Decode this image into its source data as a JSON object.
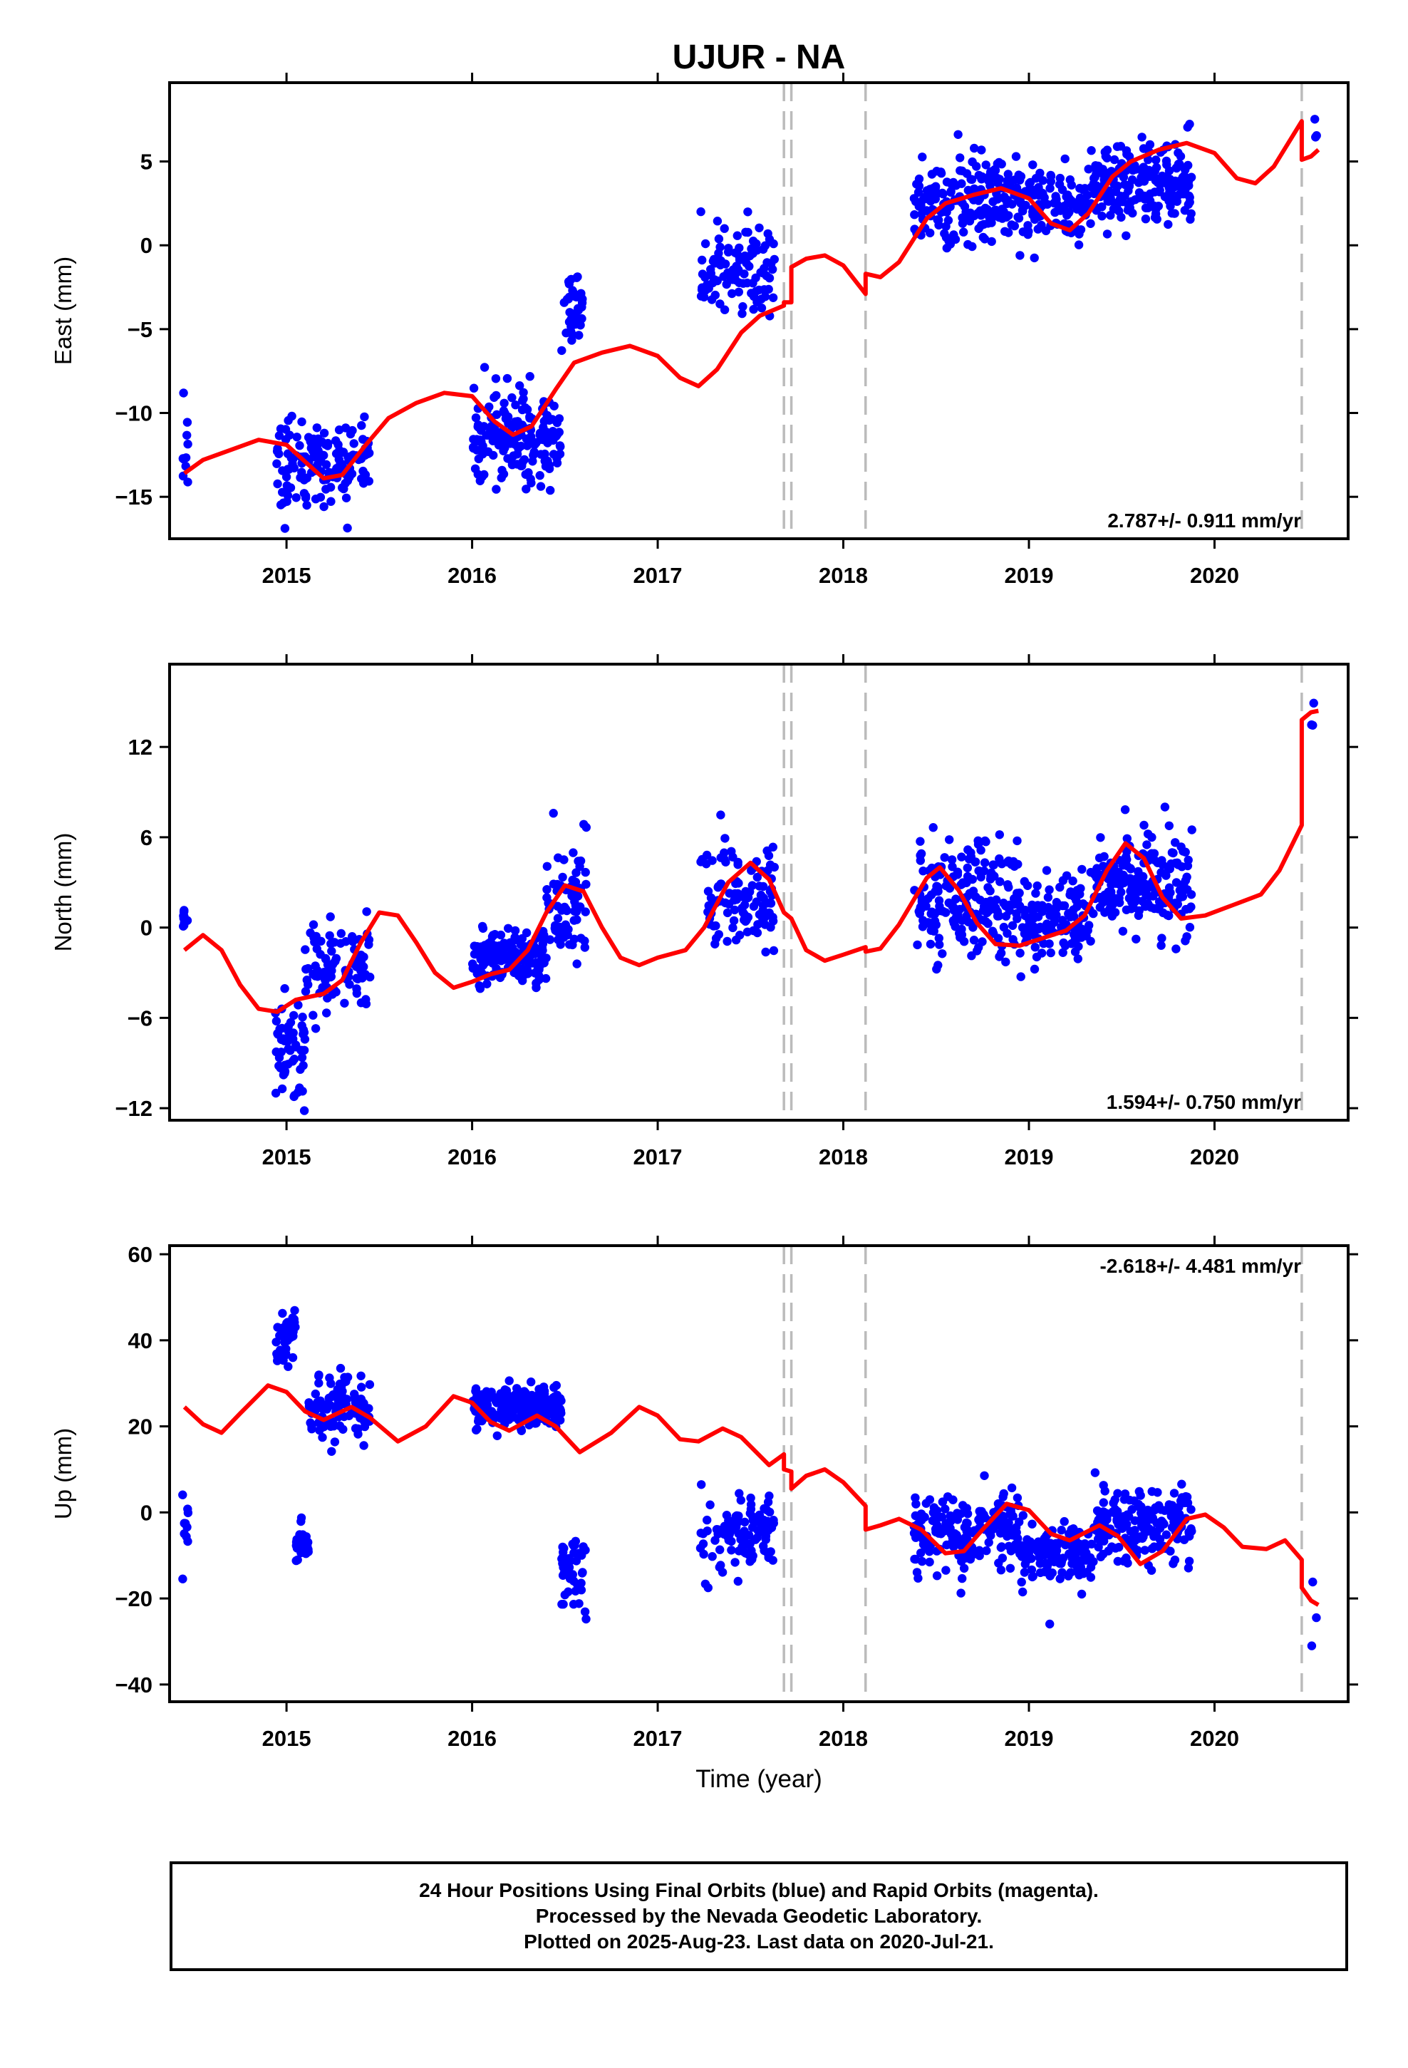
{
  "title": "UJUR - NA",
  "colors": {
    "final_orbits": "#0000ff",
    "model": "#ff0000",
    "break_lines": "#bbbbbb",
    "axes": "#000000"
  },
  "xlabel": "Time (year)",
  "footer": {
    "line1": "24 Hour Positions Using Final Orbits (blue) and Rapid Orbits (magenta).",
    "line2": "Processed by the Nevada Geodetic Laboratory.",
    "line3": "Plotted on 2025-Aug-23. Last data on 2020-Jul-21."
  },
  "chart_data": {
    "type": "scatter",
    "xlim": [
      2014.37,
      2020.72
    ],
    "x_ticks": [
      2015,
      2016,
      2017,
      2018,
      2019,
      2020
    ],
    "x_tick_labels": [
      "2015",
      "2016",
      "2017",
      "2018",
      "2019",
      "2020"
    ],
    "break_lines_x": [
      2017.68,
      2017.72,
      2018.12,
      2020.47
    ],
    "grid": false,
    "panels": [
      {
        "name": "east",
        "ylabel": "East (mm)",
        "ylim": [
          -17.5,
          9.7
        ],
        "y_ticks": [
          -15,
          -10,
          -5,
          0,
          5
        ],
        "y_tick_labels": [
          "−15",
          "−10",
          "−5",
          "0",
          "5"
        ],
        "rate_label": "2.787+/- 0.911 mm/yr",
        "rate_position": "bottom-right",
        "model": [
          [
            2014.45,
            -13.6
          ],
          [
            2014.55,
            -12.8
          ],
          [
            2014.7,
            -12.2
          ],
          [
            2014.85,
            -11.6
          ],
          [
            2015.0,
            -11.9
          ],
          [
            2015.1,
            -12.9
          ],
          [
            2015.2,
            -13.9
          ],
          [
            2015.3,
            -13.7
          ],
          [
            2015.42,
            -12.0
          ],
          [
            2015.55,
            -10.3
          ],
          [
            2015.7,
            -9.4
          ],
          [
            2015.85,
            -8.8
          ],
          [
            2016.0,
            -9.0
          ],
          [
            2016.12,
            -10.5
          ],
          [
            2016.22,
            -11.3
          ],
          [
            2016.32,
            -10.8
          ],
          [
            2016.45,
            -8.6
          ],
          [
            2016.55,
            -7.0
          ],
          [
            2016.7,
            -6.4
          ],
          [
            2016.85,
            -6.0
          ],
          [
            2017.0,
            -6.6
          ],
          [
            2017.12,
            -7.9
          ],
          [
            2017.22,
            -8.4
          ],
          [
            2017.32,
            -7.4
          ],
          [
            2017.45,
            -5.2
          ],
          [
            2017.55,
            -4.2
          ],
          [
            2017.68,
            -3.6
          ],
          [
            2017.68,
            -3.4
          ],
          [
            2017.72,
            -3.4
          ],
          [
            2017.72,
            -1.3
          ],
          [
            2017.8,
            -0.8
          ],
          [
            2017.9,
            -0.6
          ],
          [
            2018.0,
            -1.2
          ],
          [
            2018.12,
            -2.9
          ],
          [
            2018.12,
            -1.7
          ],
          [
            2018.2,
            -1.9
          ],
          [
            2018.3,
            -1.0
          ],
          [
            2018.45,
            1.6
          ],
          [
            2018.55,
            2.5
          ],
          [
            2018.7,
            3.0
          ],
          [
            2018.85,
            3.4
          ],
          [
            2019.0,
            2.8
          ],
          [
            2019.12,
            1.3
          ],
          [
            2019.22,
            0.9
          ],
          [
            2019.32,
            1.9
          ],
          [
            2019.45,
            4.1
          ],
          [
            2019.55,
            5.0
          ],
          [
            2019.7,
            5.7
          ],
          [
            2019.85,
            6.1
          ],
          [
            2020.0,
            5.5
          ],
          [
            2020.12,
            4.0
          ],
          [
            2020.22,
            3.7
          ],
          [
            2020.32,
            4.7
          ],
          [
            2020.47,
            7.4
          ],
          [
            2020.47,
            5.1
          ],
          [
            2020.52,
            5.3
          ],
          [
            2020.56,
            5.7
          ]
        ],
        "clusters": [
          {
            "x": [
              2014.44,
              2014.47
            ],
            "y": [
              -12.0,
              2.0
            ],
            "n": 10
          },
          {
            "x": [
              2014.94,
              2015.45
            ],
            "y": [
              -13.0,
              2.5
            ],
            "n": 150
          },
          {
            "x": [
              2016.0,
              2016.48
            ],
            "y": [
              -11.5,
              2.5
            ],
            "n": 180
          },
          {
            "x": [
              2016.48,
              2016.6
            ],
            "y": [
              -4.0,
              2.2
            ],
            "n": 40
          },
          {
            "x": [
              2017.23,
              2017.63
            ],
            "y": [
              -1.5,
              2.3
            ],
            "n": 110
          },
          {
            "x": [
              2018.38,
              2018.95
            ],
            "y": [
              2.6,
              2.4
            ],
            "n": 200
          },
          {
            "x": [
              2018.95,
              2019.35
            ],
            "y": [
              2.6,
              2.0
            ],
            "n": 120
          },
          {
            "x": [
              2019.35,
              2019.88
            ],
            "y": [
              3.8,
              2.3
            ],
            "n": 200
          },
          {
            "x": [
              2020.52,
              2020.56
            ],
            "y": [
              6.0,
              1.2
            ],
            "n": 3
          }
        ]
      },
      {
        "name": "north",
        "ylabel": "North (mm)",
        "ylim": [
          -12.8,
          17.5
        ],
        "y_ticks": [
          -12,
          -6,
          0,
          6,
          12
        ],
        "y_tick_labels": [
          "−12",
          "−6",
          "0",
          "6",
          "12"
        ],
        "rate_label": "1.594+/- 0.750 mm/yr",
        "rate_position": "bottom-right",
        "model": [
          [
            2014.45,
            -1.5
          ],
          [
            2014.55,
            -0.5
          ],
          [
            2014.65,
            -1.5
          ],
          [
            2014.75,
            -3.8
          ],
          [
            2014.85,
            -5.4
          ],
          [
            2014.95,
            -5.6
          ],
          [
            2015.05,
            -4.8
          ],
          [
            2015.2,
            -4.4
          ],
          [
            2015.3,
            -3.5
          ],
          [
            2015.4,
            -1.0
          ],
          [
            2015.5,
            1.0
          ],
          [
            2015.6,
            0.8
          ],
          [
            2015.7,
            -1.0
          ],
          [
            2015.8,
            -3.0
          ],
          [
            2015.9,
            -4.0
          ],
          [
            2016.0,
            -3.6
          ],
          [
            2016.1,
            -3.1
          ],
          [
            2016.2,
            -2.8
          ],
          [
            2016.3,
            -1.5
          ],
          [
            2016.4,
            1.0
          ],
          [
            2016.5,
            2.8
          ],
          [
            2016.6,
            2.4
          ],
          [
            2016.7,
            0.0
          ],
          [
            2016.8,
            -2.0
          ],
          [
            2016.9,
            -2.5
          ],
          [
            2017.0,
            -2.0
          ],
          [
            2017.15,
            -1.5
          ],
          [
            2017.25,
            0.0
          ],
          [
            2017.38,
            3.0
          ],
          [
            2017.5,
            4.3
          ],
          [
            2017.6,
            3.2
          ],
          [
            2017.68,
            1.0
          ],
          [
            2017.72,
            0.6
          ],
          [
            2017.8,
            -1.5
          ],
          [
            2017.9,
            -2.2
          ],
          [
            2018.0,
            -1.8
          ],
          [
            2018.12,
            -1.3
          ],
          [
            2018.12,
            -1.6
          ],
          [
            2018.2,
            -1.4
          ],
          [
            2018.3,
            0.2
          ],
          [
            2018.45,
            3.3
          ],
          [
            2018.52,
            4.0
          ],
          [
            2018.62,
            2.5
          ],
          [
            2018.72,
            0.3
          ],
          [
            2018.82,
            -1.1
          ],
          [
            2018.95,
            -1.2
          ],
          [
            2019.1,
            -0.6
          ],
          [
            2019.2,
            -0.2
          ],
          [
            2019.3,
            0.8
          ],
          [
            2019.42,
            3.8
          ],
          [
            2019.52,
            5.6
          ],
          [
            2019.62,
            4.6
          ],
          [
            2019.72,
            2.0
          ],
          [
            2019.82,
            0.6
          ],
          [
            2019.95,
            0.8
          ],
          [
            2020.1,
            1.5
          ],
          [
            2020.25,
            2.2
          ],
          [
            2020.35,
            3.8
          ],
          [
            2020.47,
            6.8
          ],
          [
            2020.47,
            13.8
          ],
          [
            2020.52,
            14.3
          ],
          [
            2020.56,
            14.4
          ]
        ],
        "clusters": [
          {
            "x": [
              2014.44,
              2014.47
            ],
            "y": [
              0.5,
              1.8
            ],
            "n": 10
          },
          {
            "x": [
              2014.94,
              2015.1
            ],
            "y": [
              -8.0,
              3.0
            ],
            "n": 60
          },
          {
            "x": [
              2015.1,
              2015.45
            ],
            "y": [
              -2.5,
              2.5
            ],
            "n": 90
          },
          {
            "x": [
              2016.0,
              2016.4
            ],
            "y": [
              -2.0,
              1.8
            ],
            "n": 150
          },
          {
            "x": [
              2016.4,
              2016.62
            ],
            "y": [
              1.5,
              3.5
            ],
            "n": 70
          },
          {
            "x": [
              2017.23,
              2017.63
            ],
            "y": [
              2.0,
              3.0
            ],
            "n": 110
          },
          {
            "x": [
              2018.38,
              2018.95
            ],
            "y": [
              2.0,
              3.5
            ],
            "n": 200
          },
          {
            "x": [
              2018.95,
              2019.35
            ],
            "y": [
              0.5,
              2.5
            ],
            "n": 120
          },
          {
            "x": [
              2019.35,
              2019.88
            ],
            "y": [
              3.0,
              3.0
            ],
            "n": 200
          },
          {
            "x": [
              2020.52,
              2020.56
            ],
            "y": [
              14.5,
              1.8
            ],
            "n": 3
          }
        ]
      },
      {
        "name": "up",
        "ylabel": "Up (mm)",
        "ylim": [
          -44,
          62
        ],
        "y_ticks": [
          -40,
          -20,
          0,
          20,
          40,
          60
        ],
        "y_tick_labels": [
          "−40",
          "−20",
          "0",
          "20",
          "40",
          "60"
        ],
        "rate_label": "-2.618+/- 4.481 mm/yr",
        "rate_position": "top-right",
        "model": [
          [
            2014.45,
            24.5
          ],
          [
            2014.55,
            20.5
          ],
          [
            2014.65,
            18.5
          ],
          [
            2014.75,
            23.0
          ],
          [
            2014.9,
            29.5
          ],
          [
            2015.0,
            28.0
          ],
          [
            2015.1,
            23.5
          ],
          [
            2015.2,
            21.5
          ],
          [
            2015.35,
            24.5
          ],
          [
            2015.45,
            22.0
          ],
          [
            2015.6,
            16.5
          ],
          [
            2015.75,
            20.0
          ],
          [
            2015.9,
            27.0
          ],
          [
            2016.0,
            25.5
          ],
          [
            2016.1,
            21.0
          ],
          [
            2016.2,
            19.0
          ],
          [
            2016.35,
            22.5
          ],
          [
            2016.45,
            20.0
          ],
          [
            2016.58,
            14.0
          ],
          [
            2016.75,
            18.5
          ],
          [
            2016.9,
            24.5
          ],
          [
            2017.0,
            22.5
          ],
          [
            2017.12,
            17.0
          ],
          [
            2017.22,
            16.5
          ],
          [
            2017.35,
            19.5
          ],
          [
            2017.45,
            17.5
          ],
          [
            2017.6,
            11.0
          ],
          [
            2017.68,
            13.5
          ],
          [
            2017.68,
            10.0
          ],
          [
            2017.72,
            9.5
          ],
          [
            2017.72,
            5.5
          ],
          [
            2017.8,
            8.5
          ],
          [
            2017.9,
            10.0
          ],
          [
            2018.0,
            7.0
          ],
          [
            2018.12,
            1.5
          ],
          [
            2018.12,
            -4.0
          ],
          [
            2018.2,
            -3.0
          ],
          [
            2018.3,
            -1.5
          ],
          [
            2018.42,
            -4.0
          ],
          [
            2018.55,
            -9.5
          ],
          [
            2018.65,
            -9.0
          ],
          [
            2018.75,
            -4.0
          ],
          [
            2018.88,
            2.0
          ],
          [
            2019.0,
            0.5
          ],
          [
            2019.12,
            -5.0
          ],
          [
            2019.22,
            -6.5
          ],
          [
            2019.38,
            -3.0
          ],
          [
            2019.48,
            -5.5
          ],
          [
            2019.6,
            -12.0
          ],
          [
            2019.72,
            -9.0
          ],
          [
            2019.85,
            -1.5
          ],
          [
            2019.95,
            -0.5
          ],
          [
            2020.05,
            -3.5
          ],
          [
            2020.15,
            -8.0
          ],
          [
            2020.28,
            -8.5
          ],
          [
            2020.38,
            -6.5
          ],
          [
            2020.47,
            -11.0
          ],
          [
            2020.47,
            -17.5
          ],
          [
            2020.52,
            -20.5
          ],
          [
            2020.56,
            -21.5
          ]
        ],
        "clusters": [
          {
            "x": [
              2014.44,
              2014.47
            ],
            "y": [
              -4.0,
              8.0
            ],
            "n": 10
          },
          {
            "x": [
              2014.94,
              2015.05
            ],
            "y": [
              41.0,
              7.0
            ],
            "n": 40
          },
          {
            "x": [
              2015.05,
              2015.12
            ],
            "y": [
              -8.0,
              4.0
            ],
            "n": 25
          },
          {
            "x": [
              2015.12,
              2015.45
            ],
            "y": [
              24.0,
              7.0
            ],
            "n": 110
          },
          {
            "x": [
              2016.0,
              2016.48
            ],
            "y": [
              24.5,
              4.5
            ],
            "n": 200
          },
          {
            "x": [
              2016.48,
              2016.62
            ],
            "y": [
              -13.0,
              7.0
            ],
            "n": 45
          },
          {
            "x": [
              2017.23,
              2017.63
            ],
            "y": [
              -4.0,
              8.0
            ],
            "n": 110
          },
          {
            "x": [
              2018.38,
              2018.95
            ],
            "y": [
              -5.0,
              8.0
            ],
            "n": 200
          },
          {
            "x": [
              2018.95,
              2019.35
            ],
            "y": [
              -9.0,
              7.0
            ],
            "n": 140
          },
          {
            "x": [
              2019.35,
              2019.88
            ],
            "y": [
              -3.0,
              8.0
            ],
            "n": 200
          },
          {
            "x": [
              2020.52,
              2020.56
            ],
            "y": [
              -23.0,
              16.0
            ],
            "n": 3
          }
        ]
      }
    ]
  }
}
